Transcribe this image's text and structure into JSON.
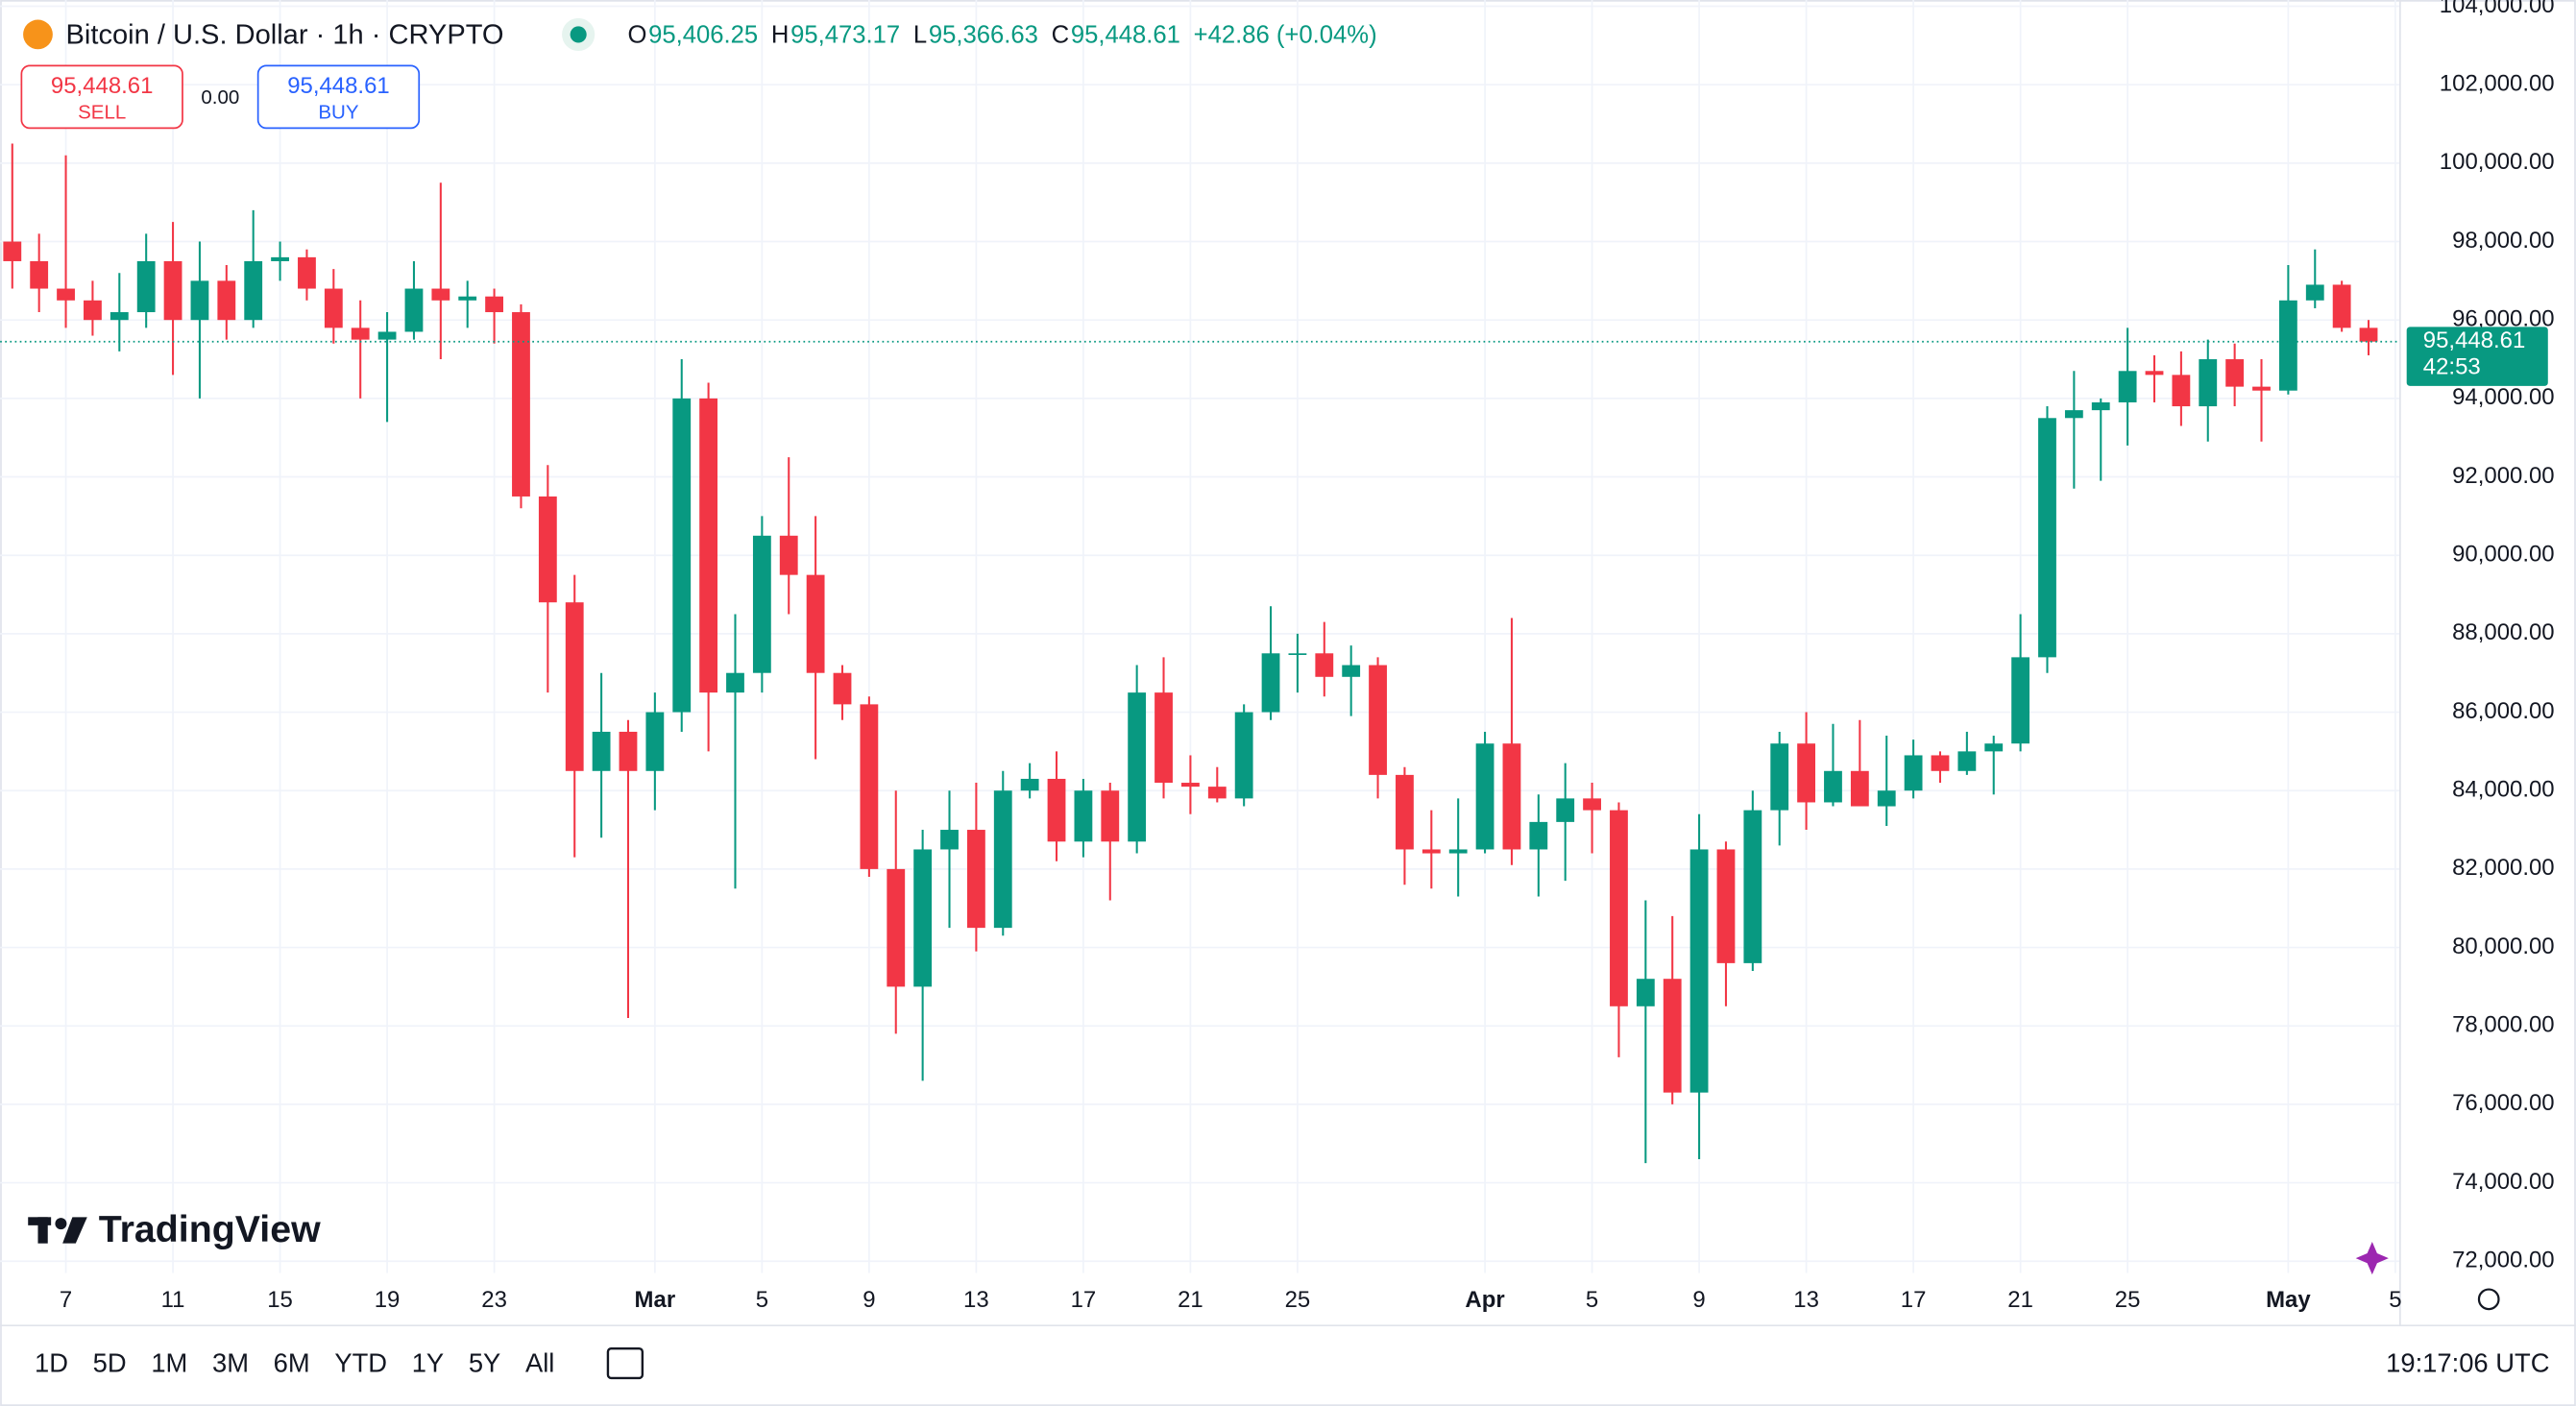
{
  "header": {
    "symbol": "Bitcoin / U.S. Dollar · 1h · CRYPTO",
    "legend": [
      {
        "key": "O",
        "value": "95,406.25"
      },
      {
        "key": "H",
        "value": "95,473.17"
      },
      {
        "key": "L",
        "value": "95,366.63"
      },
      {
        "key": "C",
        "value": "95,448.61"
      }
    ],
    "change": "+42.86 (+0.04%)"
  },
  "trade": {
    "sell": {
      "price": "95,448.61",
      "label": "SELL"
    },
    "spread": "0.00",
    "buy": {
      "price": "95,448.61",
      "label": "BUY"
    }
  },
  "logo": "TradingView",
  "toolbar": {
    "ranges": [
      "1D",
      "5D",
      "1M",
      "3M",
      "6M",
      "YTD",
      "1Y",
      "5Y",
      "All"
    ],
    "clock": "19:17:06 UTC"
  },
  "chart_data": {
    "type": "candlestick",
    "up_color": "#089981",
    "down_color": "#f23645",
    "grid": true,
    "categories": [
      null,
      null,
      "7",
      null,
      null,
      null,
      "11",
      null,
      null,
      null,
      "15",
      null,
      null,
      null,
      "19",
      null,
      null,
      null,
      "23",
      null,
      null,
      null,
      null,
      null,
      "Mar",
      null,
      null,
      null,
      "5",
      null,
      null,
      null,
      "9",
      null,
      null,
      null,
      "13",
      null,
      null,
      null,
      "17",
      null,
      null,
      null,
      "21",
      null,
      null,
      null,
      "25",
      null,
      null,
      null,
      null,
      null,
      null,
      "Apr",
      null,
      null,
      null,
      "5",
      null,
      null,
      null,
      "9",
      null,
      null,
      null,
      "13",
      null,
      null,
      null,
      "17",
      null,
      null,
      null,
      "21",
      null,
      null,
      null,
      "25",
      null,
      null,
      null,
      null,
      null,
      "May",
      null,
      null,
      null,
      "5"
    ],
    "ohlc": [
      [
        98000,
        100500,
        96800,
        97500
      ],
      [
        97500,
        98200,
        96200,
        96800
      ],
      [
        96800,
        100200,
        95800,
        96500
      ],
      [
        96500,
        97000,
        95600,
        96000
      ],
      [
        96000,
        97200,
        95200,
        96200
      ],
      [
        96200,
        98200,
        95800,
        97500
      ],
      [
        97500,
        98500,
        94600,
        96000
      ],
      [
        96000,
        98000,
        94000,
        97000
      ],
      [
        97000,
        97400,
        95500,
        96000
      ],
      [
        96000,
        98800,
        95800,
        97500
      ],
      [
        97500,
        98000,
        97000,
        97600
      ],
      [
        97600,
        97800,
        96500,
        96800
      ],
      [
        96800,
        97300,
        95400,
        95800
      ],
      [
        95800,
        96500,
        94000,
        95500
      ],
      [
        95500,
        96200,
        93400,
        95700
      ],
      [
        95700,
        97500,
        95500,
        96800
      ],
      [
        96800,
        99500,
        95000,
        96500
      ],
      [
        96500,
        97000,
        95800,
        96600
      ],
      [
        96600,
        96800,
        95400,
        96200
      ],
      [
        96200,
        96400,
        91200,
        91500
      ],
      [
        91500,
        92300,
        86500,
        88800
      ],
      [
        88800,
        89500,
        82300,
        84500
      ],
      [
        84500,
        87000,
        82800,
        85500
      ],
      [
        85500,
        85800,
        78200,
        84500
      ],
      [
        84500,
        86500,
        83500,
        86000
      ],
      [
        86000,
        95000,
        85500,
        94000
      ],
      [
        94000,
        94400,
        85000,
        86500
      ],
      [
        86500,
        88500,
        81500,
        87000
      ],
      [
        87000,
        91000,
        86500,
        90500
      ],
      [
        90500,
        92500,
        88500,
        89500
      ],
      [
        89500,
        91000,
        84800,
        87000
      ],
      [
        87000,
        87200,
        85800,
        86200
      ],
      [
        86200,
        86400,
        81800,
        82000
      ],
      [
        82000,
        84000,
        77800,
        79000
      ],
      [
        79000,
        83000,
        76600,
        82500
      ],
      [
        82500,
        84000,
        80500,
        83000
      ],
      [
        83000,
        84200,
        79900,
        80500
      ],
      [
        80500,
        84500,
        80300,
        84000
      ],
      [
        84000,
        84700,
        83800,
        84300
      ],
      [
        84300,
        85000,
        82200,
        82700
      ],
      [
        82700,
        84300,
        82300,
        84000
      ],
      [
        84000,
        84200,
        81200,
        82700
      ],
      [
        82700,
        87200,
        82400,
        86500
      ],
      [
        86500,
        87400,
        83800,
        84200
      ],
      [
        84200,
        84900,
        83400,
        84100
      ],
      [
        84100,
        84600,
        83700,
        83800
      ],
      [
        83800,
        86200,
        83600,
        86000
      ],
      [
        86000,
        88700,
        85800,
        87500
      ],
      [
        87500,
        88000,
        86500,
        87500
      ],
      [
        87500,
        88300,
        86400,
        86900
      ],
      [
        86900,
        87700,
        85900,
        87200
      ],
      [
        87200,
        87400,
        83800,
        84400
      ],
      [
        84400,
        84600,
        81600,
        82500
      ],
      [
        82500,
        83500,
        81500,
        82400
      ],
      [
        82400,
        83800,
        81300,
        82500
      ],
      [
        82500,
        85500,
        82400,
        85200
      ],
      [
        85200,
        88400,
        82100,
        82500
      ],
      [
        82500,
        83900,
        81300,
        83200
      ],
      [
        83200,
        84700,
        81700,
        83800
      ],
      [
        83800,
        84200,
        82400,
        83500
      ],
      [
        83500,
        83700,
        77200,
        78500
      ],
      [
        78500,
        81200,
        74500,
        79200
      ],
      [
        79200,
        80800,
        76000,
        76300
      ],
      [
        76300,
        83400,
        74600,
        82500
      ],
      [
        82500,
        82700,
        78500,
        79600
      ],
      [
        79600,
        84000,
        79400,
        83500
      ],
      [
        83500,
        85500,
        82600,
        85200
      ],
      [
        85200,
        86000,
        83000,
        83700
      ],
      [
        83700,
        85700,
        83600,
        84500
      ],
      [
        84500,
        85800,
        83600,
        83600
      ],
      [
        83600,
        85400,
        83100,
        84000
      ],
      [
        84000,
        85300,
        83800,
        84900
      ],
      [
        84900,
        85000,
        84200,
        84500
      ],
      [
        84500,
        85500,
        84400,
        85000
      ],
      [
        85000,
        85400,
        83900,
        85200
      ],
      [
        85200,
        88500,
        85000,
        87400
      ],
      [
        87400,
        93800,
        87000,
        93500
      ],
      [
        93500,
        94700,
        91700,
        93700
      ],
      [
        93700,
        94000,
        91900,
        93900
      ],
      [
        93900,
        95800,
        92800,
        94700
      ],
      [
        94700,
        95100,
        93900,
        94600
      ],
      [
        94600,
        95200,
        93300,
        93800
      ],
      [
        93800,
        95500,
        92900,
        95000
      ],
      [
        95000,
        95400,
        93800,
        94300
      ],
      [
        94300,
        95000,
        92900,
        94200
      ],
      [
        94200,
        97400,
        94100,
        96500
      ],
      [
        96500,
        97800,
        96300,
        96900
      ],
      [
        96900,
        97000,
        95700,
        95800
      ],
      [
        95800,
        96000,
        95100,
        95448.61
      ],
      null
    ],
    "ylim": [
      71700,
      104160
    ],
    "yticks": [
      {
        "value": 72000,
        "label": "72,000.00"
      },
      {
        "value": 74000,
        "label": "74,000.00"
      },
      {
        "value": 76000,
        "label": "76,000.00"
      },
      {
        "value": 78000,
        "label": "78,000.00"
      },
      {
        "value": 80000,
        "label": "80,000.00"
      },
      {
        "value": 82000,
        "label": "82,000.00"
      },
      {
        "value": 84000,
        "label": "84,000.00"
      },
      {
        "value": 86000,
        "label": "86,000.00"
      },
      {
        "value": 88000,
        "label": "88,000.00"
      },
      {
        "value": 90000,
        "label": "90,000.00"
      },
      {
        "value": 92000,
        "label": "92,000.00"
      },
      {
        "value": 94000,
        "label": "94,000.00"
      },
      {
        "value": 96000,
        "label": "96,000.00"
      },
      {
        "value": 98000,
        "label": "98,000.00"
      },
      {
        "value": 100000,
        "label": "100,000.00"
      },
      {
        "value": 102000,
        "label": "102,000.00"
      },
      {
        "value": 104000,
        "label": "104,000.00"
      }
    ],
    "last_price": {
      "value": 95448.61,
      "label": "95,448.61"
    },
    "countdown": "42:53"
  }
}
